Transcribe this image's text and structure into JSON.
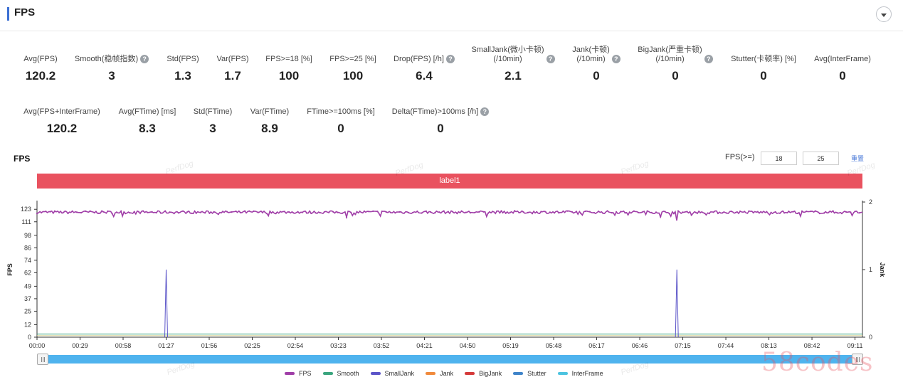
{
  "header": {
    "title": "FPS"
  },
  "metrics_row1": [
    {
      "label": "Avg(FPS)",
      "value": "120.2",
      "help": false
    },
    {
      "label": "Smooth(稳帧指数)",
      "value": "3",
      "help": true
    },
    {
      "label": "Std(FPS)",
      "value": "1.3",
      "help": false
    },
    {
      "label": "Var(FPS)",
      "value": "1.7",
      "help": false
    },
    {
      "label": "FPS>=18 [%]",
      "value": "100",
      "help": false
    },
    {
      "label": "FPS>=25 [%]",
      "value": "100",
      "help": false
    },
    {
      "label": "Drop(FPS) [/h]",
      "value": "6.4",
      "help": true
    },
    {
      "label": "SmallJank(微小卡顿)\n(/10min)",
      "value": "2.1",
      "help": true
    },
    {
      "label": "Jank(卡顿)\n(/10min)",
      "value": "0",
      "help": true
    },
    {
      "label": "BigJank(严重卡顿)\n(/10min)",
      "value": "0",
      "help": true
    },
    {
      "label": "Stutter(卡顿率) [%]",
      "value": "0",
      "help": false
    },
    {
      "label": "Avg(InterFrame)",
      "value": "0",
      "help": false
    }
  ],
  "metrics_row2": [
    {
      "label": "Avg(FPS+InterFrame)",
      "value": "120.2",
      "help": false
    },
    {
      "label": "Avg(FTime) [ms]",
      "value": "8.3",
      "help": false
    },
    {
      "label": "Std(FTime)",
      "value": "3",
      "help": false
    },
    {
      "label": "Var(FTime)",
      "value": "8.9",
      "help": false
    },
    {
      "label": "FTime>=100ms [%]",
      "value": "0",
      "help": false
    },
    {
      "label": "Delta(FTime)>100ms [/h]",
      "value": "0",
      "help": true
    }
  ],
  "help_glyph": "?",
  "chart_title": "FPS",
  "threshold": {
    "label": "FPS(>=)",
    "low": "18",
    "high": "25",
    "reset_label": "重置"
  },
  "label_band": "label1",
  "watermark": "PerfDog",
  "brand_watermark": "58codes",
  "chart_data": {
    "type": "line",
    "ylabel": "FPS",
    "y2label": "Jank",
    "ylim": [
      0,
      130
    ],
    "y2lim": [
      0,
      2
    ],
    "yticks": [
      0,
      12,
      25,
      37,
      49,
      62,
      74,
      86,
      98,
      111,
      123
    ],
    "y2ticks": [
      0,
      1,
      2
    ],
    "xlim_seconds": [
      0,
      556
    ],
    "xticks": [
      "00:00",
      "00:29",
      "00:58",
      "01:27",
      "01:56",
      "02:25",
      "02:54",
      "03:23",
      "03:52",
      "04:21",
      "04:50",
      "05:19",
      "05:48",
      "06:17",
      "06:46",
      "07:15",
      "07:44",
      "08:13",
      "08:42",
      "09:11"
    ],
    "series": [
      {
        "name": "FPS",
        "color": "#a03fa8",
        "axis": "left",
        "mean": 120.2,
        "std": 1.3
      },
      {
        "name": "Smooth",
        "color": "#3aa57e",
        "axis": "left",
        "value": 3
      },
      {
        "name": "SmallJank",
        "color": "#5b54c8",
        "axis": "right",
        "spikes_at": [
          "01:27",
          "07:11"
        ],
        "spike_value": 1
      },
      {
        "name": "Jank",
        "color": "#f08a3c",
        "axis": "right",
        "value": 0
      },
      {
        "name": "BigJank",
        "color": "#d53b3b",
        "axis": "right",
        "value": 0
      },
      {
        "name": "Stutter",
        "color": "#3f84c9",
        "axis": "left",
        "value": 0
      },
      {
        "name": "InterFrame",
        "color": "#4cc3e0",
        "axis": "left",
        "value": 0
      }
    ]
  }
}
